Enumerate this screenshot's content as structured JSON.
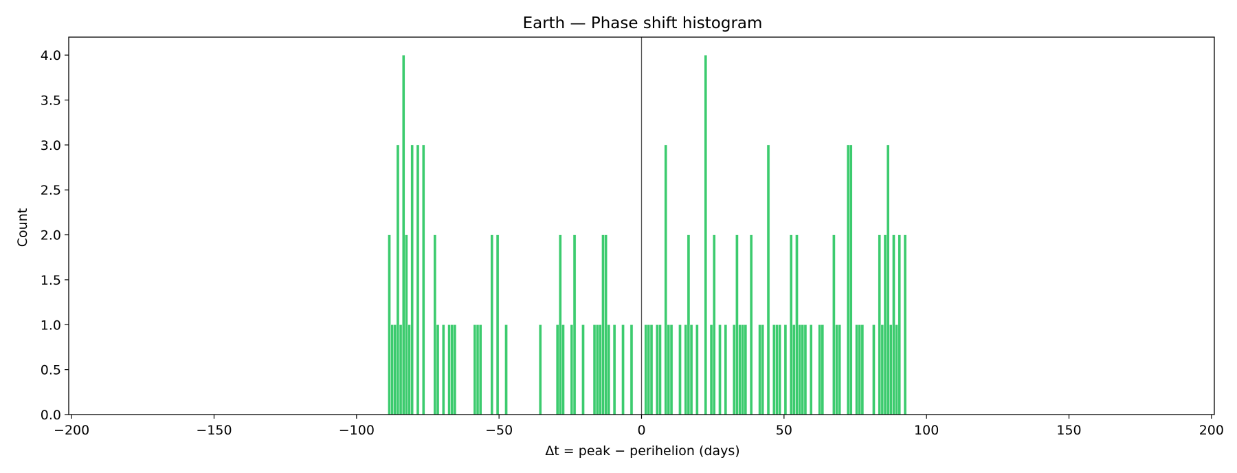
{
  "chart_data": {
    "type": "bar",
    "title": "Earth — Phase shift histogram",
    "xlabel": "Δt = peak − perihelion (days)",
    "ylabel": "Count",
    "xlim": [
      -201,
      201
    ],
    "ylim": [
      0,
      4.2
    ],
    "xticks": [
      -200,
      -150,
      -100,
      -50,
      0,
      50,
      100,
      150,
      200
    ],
    "xtick_labels": [
      "−200",
      "−150",
      "−100",
      "−50",
      "0",
      "50",
      "100",
      "150",
      "200"
    ],
    "yticks": [
      0.0,
      0.5,
      1.0,
      1.5,
      2.0,
      2.5,
      3.0,
      3.5,
      4.0
    ],
    "ytick_labels": [
      "0.0",
      "0.5",
      "1.0",
      "1.5",
      "2.0",
      "2.5",
      "3.0",
      "3.5",
      "4.0"
    ],
    "bin_width": 1,
    "bar_color": "#3ccb6e",
    "reference_line": {
      "x": 0,
      "color": "#555555"
    },
    "grid": false,
    "bins": [
      {
        "x": -89,
        "count": 2
      },
      {
        "x": -88,
        "count": 1
      },
      {
        "x": -87,
        "count": 1
      },
      {
        "x": -86,
        "count": 3
      },
      {
        "x": -85,
        "count": 1
      },
      {
        "x": -84,
        "count": 4
      },
      {
        "x": -83,
        "count": 2
      },
      {
        "x": -82,
        "count": 1
      },
      {
        "x": -81,
        "count": 3
      },
      {
        "x": -79,
        "count": 3
      },
      {
        "x": -77,
        "count": 3
      },
      {
        "x": -73,
        "count": 2
      },
      {
        "x": -72,
        "count": 1
      },
      {
        "x": -70,
        "count": 1
      },
      {
        "x": -68,
        "count": 1
      },
      {
        "x": -67,
        "count": 1
      },
      {
        "x": -66,
        "count": 1
      },
      {
        "x": -59,
        "count": 1
      },
      {
        "x": -58,
        "count": 1
      },
      {
        "x": -57,
        "count": 1
      },
      {
        "x": -53,
        "count": 2
      },
      {
        "x": -51,
        "count": 2
      },
      {
        "x": -48,
        "count": 1
      },
      {
        "x": -36,
        "count": 1
      },
      {
        "x": -30,
        "count": 1
      },
      {
        "x": -29,
        "count": 2
      },
      {
        "x": -28,
        "count": 1
      },
      {
        "x": -25,
        "count": 1
      },
      {
        "x": -24,
        "count": 2
      },
      {
        "x": -21,
        "count": 1
      },
      {
        "x": -17,
        "count": 1
      },
      {
        "x": -16,
        "count": 1
      },
      {
        "x": -15,
        "count": 1
      },
      {
        "x": -14,
        "count": 2
      },
      {
        "x": -13,
        "count": 2
      },
      {
        "x": -12,
        "count": 1
      },
      {
        "x": -10,
        "count": 1
      },
      {
        "x": -7,
        "count": 1
      },
      {
        "x": -4,
        "count": 1
      },
      {
        "x": 1,
        "count": 1
      },
      {
        "x": 2,
        "count": 1
      },
      {
        "x": 3,
        "count": 1
      },
      {
        "x": 5,
        "count": 1
      },
      {
        "x": 6,
        "count": 1
      },
      {
        "x": 8,
        "count": 3
      },
      {
        "x": 9,
        "count": 1
      },
      {
        "x": 10,
        "count": 1
      },
      {
        "x": 13,
        "count": 1
      },
      {
        "x": 15,
        "count": 1
      },
      {
        "x": 16,
        "count": 2
      },
      {
        "x": 17,
        "count": 1
      },
      {
        "x": 19,
        "count": 1
      },
      {
        "x": 22,
        "count": 4
      },
      {
        "x": 24,
        "count": 1
      },
      {
        "x": 25,
        "count": 2
      },
      {
        "x": 27,
        "count": 1
      },
      {
        "x": 29,
        "count": 1
      },
      {
        "x": 32,
        "count": 1
      },
      {
        "x": 33,
        "count": 2
      },
      {
        "x": 34,
        "count": 1
      },
      {
        "x": 35,
        "count": 1
      },
      {
        "x": 36,
        "count": 1
      },
      {
        "x": 38,
        "count": 2
      },
      {
        "x": 41,
        "count": 1
      },
      {
        "x": 42,
        "count": 1
      },
      {
        "x": 44,
        "count": 3
      },
      {
        "x": 46,
        "count": 1
      },
      {
        "x": 47,
        "count": 1
      },
      {
        "x": 48,
        "count": 1
      },
      {
        "x": 50,
        "count": 1
      },
      {
        "x": 52,
        "count": 2
      },
      {
        "x": 53,
        "count": 1
      },
      {
        "x": 54,
        "count": 2
      },
      {
        "x": 55,
        "count": 1
      },
      {
        "x": 56,
        "count": 1
      },
      {
        "x": 57,
        "count": 1
      },
      {
        "x": 59,
        "count": 1
      },
      {
        "x": 62,
        "count": 1
      },
      {
        "x": 63,
        "count": 1
      },
      {
        "x": 67,
        "count": 2
      },
      {
        "x": 68,
        "count": 1
      },
      {
        "x": 69,
        "count": 1
      },
      {
        "x": 72,
        "count": 3
      },
      {
        "x": 73,
        "count": 3
      },
      {
        "x": 75,
        "count": 1
      },
      {
        "x": 76,
        "count": 1
      },
      {
        "x": 77,
        "count": 1
      },
      {
        "x": 81,
        "count": 1
      },
      {
        "x": 83,
        "count": 2
      },
      {
        "x": 84,
        "count": 1
      },
      {
        "x": 85,
        "count": 2
      },
      {
        "x": 86,
        "count": 3
      },
      {
        "x": 87,
        "count": 1
      },
      {
        "x": 88,
        "count": 2
      },
      {
        "x": 89,
        "count": 1
      },
      {
        "x": 90,
        "count": 2
      },
      {
        "x": 92,
        "count": 2
      }
    ]
  }
}
